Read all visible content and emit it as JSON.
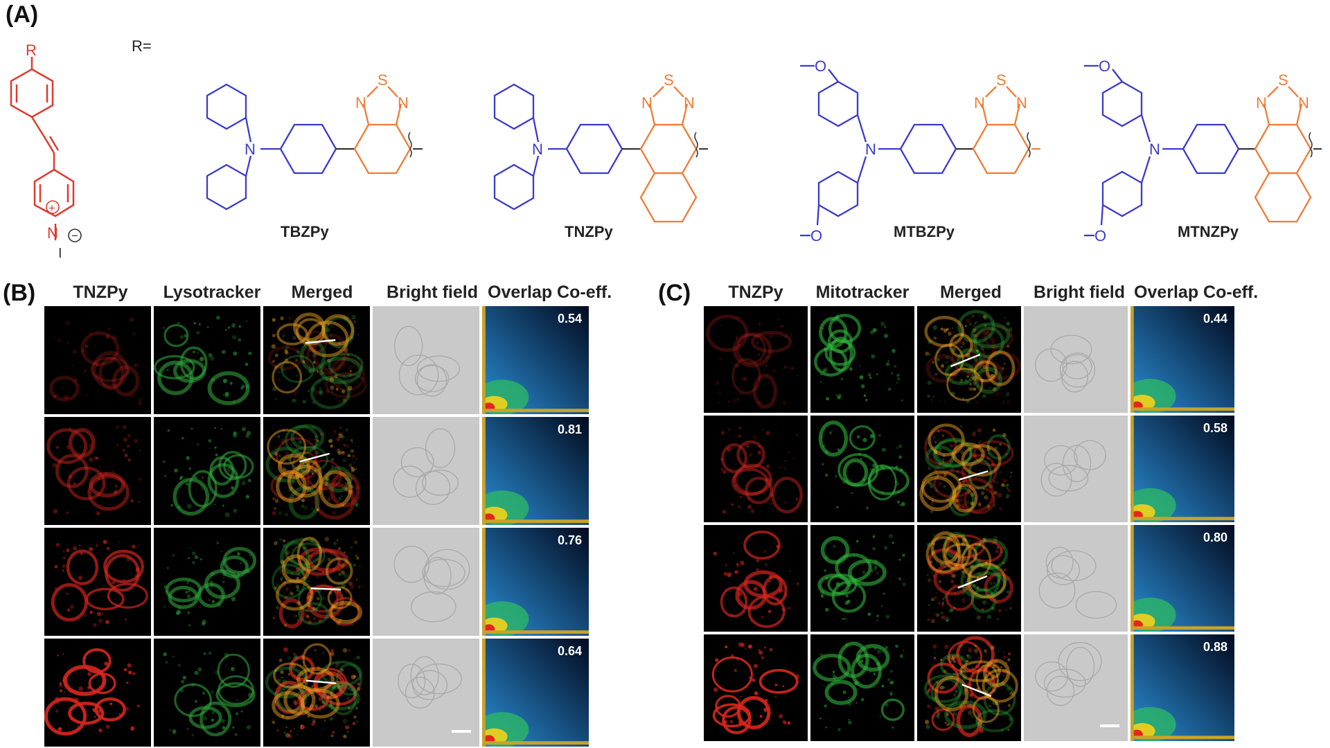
{
  "panels": {
    "a_label": "(A)",
    "b_label": "(B)",
    "c_label": "(C)"
  },
  "scheme": {
    "r_group_label": "R=",
    "core_substituent": "R",
    "charge_plus": "+",
    "charge_minus": "−",
    "iodide": "I",
    "atoms": {
      "S": "S",
      "N": "N",
      "O": "O"
    },
    "compounds": [
      "TBZPy",
      "TNZPy",
      "MTBZPy",
      "MTNZPy"
    ]
  },
  "panel_b": {
    "headers": [
      "TNZPy",
      "Lysotracker",
      "Merged",
      "Bright field",
      "Overlap Co-eff."
    ],
    "coefficients": [
      "0.54",
      "0.81",
      "0.76",
      "0.64"
    ]
  },
  "panel_c": {
    "headers": [
      "TNZPy",
      "Mitotracker",
      "Merged",
      "Bright field",
      "Overlap Co-eff."
    ],
    "coefficients": [
      "0.44",
      "0.58",
      "0.80",
      "0.88"
    ]
  },
  "colors": {
    "red_part": "#e0392f",
    "blue_part": "#3a3acd",
    "orange_part": "#f07b35"
  }
}
